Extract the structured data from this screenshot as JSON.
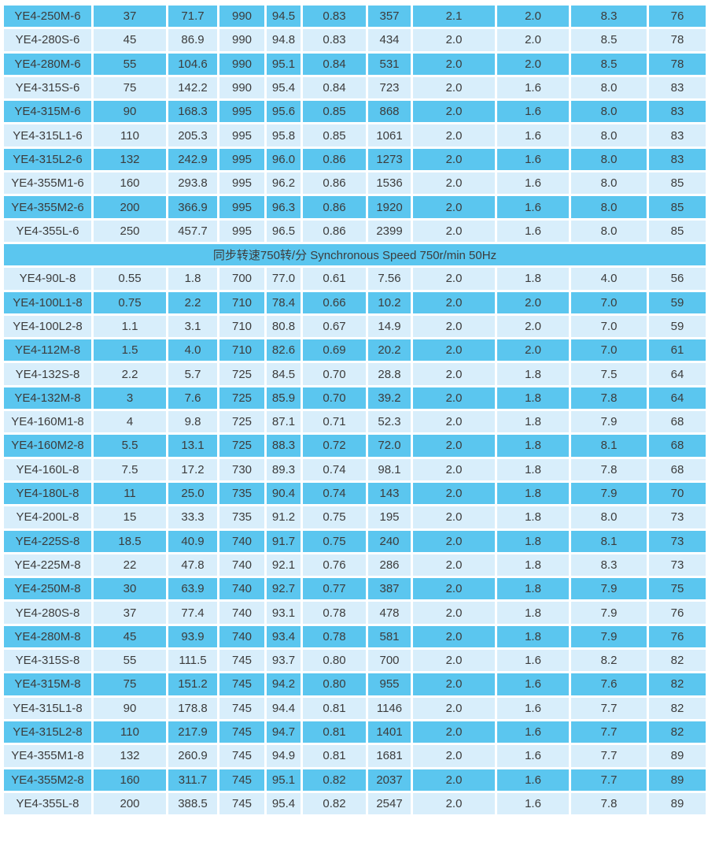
{
  "colors": {
    "row_dark": "#5bc6ef",
    "row_light": "#d8eefb",
    "text": "#3c3c3c",
    "page_background": "#ffffff"
  },
  "table": {
    "sections": [
      {
        "kind": "rows",
        "start_shade": "dark",
        "rows": [
          [
            "YE4-250M-6",
            "37",
            "71.7",
            "990",
            "94.5",
            "0.83",
            "357",
            "2.1",
            "2.0",
            "8.3",
            "76"
          ],
          [
            "YE4-280S-6",
            "45",
            "86.9",
            "990",
            "94.8",
            "0.83",
            "434",
            "2.0",
            "2.0",
            "8.5",
            "78"
          ],
          [
            "YE4-280M-6",
            "55",
            "104.6",
            "990",
            "95.1",
            "0.84",
            "531",
            "2.0",
            "2.0",
            "8.5",
            "78"
          ],
          [
            "YE4-315S-6",
            "75",
            "142.2",
            "990",
            "95.4",
            "0.84",
            "723",
            "2.0",
            "1.6",
            "8.0",
            "83"
          ],
          [
            "YE4-315M-6",
            "90",
            "168.3",
            "995",
            "95.6",
            "0.85",
            "868",
            "2.0",
            "1.6",
            "8.0",
            "83"
          ],
          [
            "YE4-315L1-6",
            "110",
            "205.3",
            "995",
            "95.8",
            "0.85",
            "1061",
            "2.0",
            "1.6",
            "8.0",
            "83"
          ],
          [
            "YE4-315L2-6",
            "132",
            "242.9",
            "995",
            "96.0",
            "0.86",
            "1273",
            "2.0",
            "1.6",
            "8.0",
            "83"
          ],
          [
            "YE4-355M1-6",
            "160",
            "293.8",
            "995",
            "96.2",
            "0.86",
            "1536",
            "2.0",
            "1.6",
            "8.0",
            "85"
          ],
          [
            "YE4-355M2-6",
            "200",
            "366.9",
            "995",
            "96.3",
            "0.86",
            "1920",
            "2.0",
            "1.6",
            "8.0",
            "85"
          ],
          [
            "YE4-355L-6",
            "250",
            "457.7",
            "995",
            "96.5",
            "0.86",
            "2399",
            "2.0",
            "1.6",
            "8.0",
            "85"
          ]
        ]
      },
      {
        "kind": "band",
        "label": "同步转速750转/分 Synchronous Speed 750r/min 50Hz"
      },
      {
        "kind": "rows",
        "start_shade": "light",
        "rows": [
          [
            "YE4-90L-8",
            "0.55",
            "1.8",
            "700",
            "77.0",
            "0.61",
            "7.56",
            "2.0",
            "1.8",
            "4.0",
            "56"
          ],
          [
            "YE4-100L1-8",
            "0.75",
            "2.2",
            "710",
            "78.4",
            "0.66",
            "10.2",
            "2.0",
            "2.0",
            "7.0",
            "59"
          ],
          [
            "YE4-100L2-8",
            "1.1",
            "3.1",
            "710",
            "80.8",
            "0.67",
            "14.9",
            "2.0",
            "2.0",
            "7.0",
            "59"
          ],
          [
            "YE4-112M-8",
            "1.5",
            "4.0",
            "710",
            "82.6",
            "0.69",
            "20.2",
            "2.0",
            "2.0",
            "7.0",
            "61"
          ],
          [
            "YE4-132S-8",
            "2.2",
            "5.7",
            "725",
            "84.5",
            "0.70",
            "28.8",
            "2.0",
            "1.8",
            "7.5",
            "64"
          ],
          [
            "YE4-132M-8",
            "3",
            "7.6",
            "725",
            "85.9",
            "0.70",
            "39.2",
            "2.0",
            "1.8",
            "7.8",
            "64"
          ],
          [
            "YE4-160M1-8",
            "4",
            "9.8",
            "725",
            "87.1",
            "0.71",
            "52.3",
            "2.0",
            "1.8",
            "7.9",
            "68"
          ],
          [
            "YE4-160M2-8",
            "5.5",
            "13.1",
            "725",
            "88.3",
            "0.72",
            "72.0",
            "2.0",
            "1.8",
            "8.1",
            "68"
          ],
          [
            "YE4-160L-8",
            "7.5",
            "17.2",
            "730",
            "89.3",
            "0.74",
            "98.1",
            "2.0",
            "1.8",
            "7.8",
            "68"
          ],
          [
            "YE4-180L-8",
            "11",
            "25.0",
            "735",
            "90.4",
            "0.74",
            "143",
            "2.0",
            "1.8",
            "7.9",
            "70"
          ],
          [
            "YE4-200L-8",
            "15",
            "33.3",
            "735",
            "91.2",
            "0.75",
            "195",
            "2.0",
            "1.8",
            "8.0",
            "73"
          ],
          [
            "YE4-225S-8",
            "18.5",
            "40.9",
            "740",
            "91.7",
            "0.75",
            "240",
            "2.0",
            "1.8",
            "8.1",
            "73"
          ],
          [
            "YE4-225M-8",
            "22",
            "47.8",
            "740",
            "92.1",
            "0.76",
            "286",
            "2.0",
            "1.8",
            "8.3",
            "73"
          ],
          [
            "YE4-250M-8",
            "30",
            "63.9",
            "740",
            "92.7",
            "0.77",
            "387",
            "2.0",
            "1.8",
            "7.9",
            "75"
          ],
          [
            "YE4-280S-8",
            "37",
            "77.4",
            "740",
            "93.1",
            "0.78",
            "478",
            "2.0",
            "1.8",
            "7.9",
            "76"
          ],
          [
            "YE4-280M-8",
            "45",
            "93.9",
            "740",
            "93.4",
            "0.78",
            "581",
            "2.0",
            "1.8",
            "7.9",
            "76"
          ],
          [
            "YE4-315S-8",
            "55",
            "111.5",
            "745",
            "93.7",
            "0.80",
            "700",
            "2.0",
            "1.6",
            "8.2",
            "82"
          ],
          [
            "YE4-315M-8",
            "75",
            "151.2",
            "745",
            "94.2",
            "0.80",
            "955",
            "2.0",
            "1.6",
            "7.6",
            "82"
          ],
          [
            "YE4-315L1-8",
            "90",
            "178.8",
            "745",
            "94.4",
            "0.81",
            "1146",
            "2.0",
            "1.6",
            "7.7",
            "82"
          ],
          [
            "YE4-315L2-8",
            "110",
            "217.9",
            "745",
            "94.7",
            "0.81",
            "1401",
            "2.0",
            "1.6",
            "7.7",
            "82"
          ],
          [
            "YE4-355M1-8",
            "132",
            "260.9",
            "745",
            "94.9",
            "0.81",
            "1681",
            "2.0",
            "1.6",
            "7.7",
            "89"
          ],
          [
            "YE4-355M2-8",
            "160",
            "311.7",
            "745",
            "95.1",
            "0.82",
            "2037",
            "2.0",
            "1.6",
            "7.7",
            "89"
          ],
          [
            "YE4-355L-8",
            "200",
            "388.5",
            "745",
            "95.4",
            "0.82",
            "2547",
            "2.0",
            "1.6",
            "7.8",
            "89"
          ]
        ]
      }
    ]
  }
}
